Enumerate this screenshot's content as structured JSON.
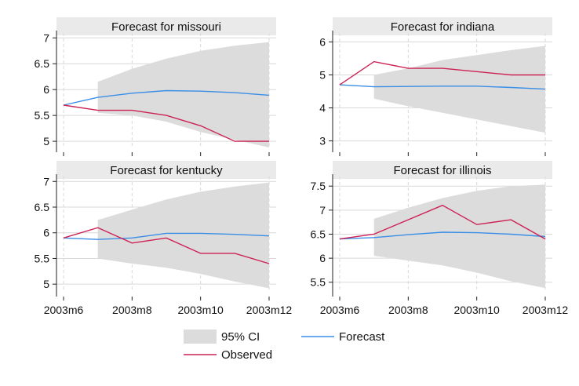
{
  "chart_data": {
    "type": "line",
    "x_ticks": [
      "2003m6",
      "2003m8",
      "2003m10",
      "2003m12"
    ],
    "x_months": [
      "2003m6",
      "2003m7",
      "2003m8",
      "2003m9",
      "2003m10",
      "2003m11",
      "2003m12"
    ],
    "colors": {
      "ci": "#dcdcdc",
      "forecast": "#3a8ee6",
      "observed": "#cc2255",
      "title_strip": "#eaeaea",
      "grid": "#d9d9d9"
    },
    "legend": {
      "ci": "95% CI",
      "forecast": "Forecast",
      "observed": "Observed",
      "placement": "bottom"
    },
    "panels": [
      {
        "title": "Forecast for missouri",
        "ylim": [
          4.88,
          7.05
        ],
        "yticks": [
          "5",
          "5.5",
          "6",
          "6.5",
          "7"
        ],
        "observed": [
          5.7,
          5.6,
          5.6,
          5.5,
          5.3,
          5.0,
          5.0
        ],
        "forecast": [
          5.7,
          5.85,
          5.93,
          5.98,
          5.97,
          5.94,
          5.89
        ],
        "ci_x": [
          "2003m7",
          "2003m8",
          "2003m9",
          "2003m10",
          "2003m11",
          "2003m12"
        ],
        "ci_lower": [
          5.55,
          5.5,
          5.38,
          5.18,
          5.03,
          4.88
        ],
        "ci_upper": [
          6.15,
          6.4,
          6.6,
          6.75,
          6.85,
          6.92
        ]
      },
      {
        "title": "Forecast for indiana",
        "ylim": [
          2.8,
          6.2
        ],
        "yticks": [
          "3",
          "4",
          "5",
          "6"
        ],
        "observed": [
          4.7,
          5.4,
          5.2,
          5.2,
          5.1,
          5.0,
          5.0
        ],
        "forecast": [
          4.7,
          4.64,
          4.65,
          4.66,
          4.66,
          4.62,
          4.57
        ],
        "ci_x": [
          "2003m7",
          "2003m8",
          "2003m9",
          "2003m10",
          "2003m11",
          "2003m12"
        ],
        "ci_lower": [
          4.28,
          4.05,
          3.85,
          3.65,
          3.45,
          3.25
        ],
        "ci_upper": [
          5.0,
          5.2,
          5.45,
          5.6,
          5.75,
          5.88
        ]
      },
      {
        "title": "Forecast for kentucky",
        "ylim": [
          4.85,
          7.05
        ],
        "yticks": [
          "5",
          "5.5",
          "6",
          "6.5",
          "7"
        ],
        "observed": [
          5.9,
          6.1,
          5.8,
          5.9,
          5.6,
          5.6,
          5.4
        ],
        "forecast": [
          5.9,
          5.87,
          5.9,
          5.99,
          5.99,
          5.97,
          5.94
        ],
        "ci_x": [
          "2003m7",
          "2003m8",
          "2003m9",
          "2003m10",
          "2003m11",
          "2003m12"
        ],
        "ci_lower": [
          5.5,
          5.4,
          5.32,
          5.2,
          5.05,
          4.92
        ],
        "ci_upper": [
          6.25,
          6.45,
          6.65,
          6.8,
          6.9,
          6.98
        ]
      },
      {
        "title": "Forecast for illinois",
        "ylim": [
          5.3,
          7.65
        ],
        "yticks": [
          "5.5",
          "6",
          "6.5",
          "7",
          "7.5"
        ],
        "observed": [
          6.4,
          6.5,
          6.8,
          7.1,
          6.7,
          6.8,
          6.4
        ],
        "forecast": [
          6.4,
          6.43,
          6.49,
          6.54,
          6.53,
          6.5,
          6.45
        ],
        "ci_x": [
          "2003m7",
          "2003m8",
          "2003m9",
          "2003m10",
          "2003m11",
          "2003m12"
        ],
        "ci_lower": [
          6.05,
          5.95,
          5.85,
          5.7,
          5.52,
          5.38
        ],
        "ci_upper": [
          6.82,
          7.05,
          7.25,
          7.4,
          7.5,
          7.53
        ]
      }
    ]
  }
}
